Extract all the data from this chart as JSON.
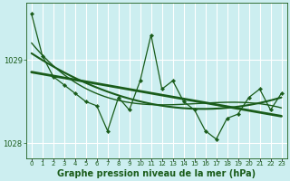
{
  "title": "Graphe pression niveau de la mer (hPa)",
  "background_color": "#cceef0",
  "grid_color": "#ffffff",
  "line_color": "#1a5c1a",
  "x_values": [
    0,
    1,
    2,
    3,
    4,
    5,
    6,
    7,
    8,
    9,
    10,
    11,
    12,
    13,
    14,
    15,
    16,
    17,
    18,
    19,
    20,
    21,
    22,
    23
  ],
  "y_values": [
    1029.55,
    1029.05,
    1028.8,
    1028.7,
    1028.6,
    1028.5,
    1028.45,
    1028.15,
    1028.55,
    1028.4,
    1028.75,
    1029.3,
    1028.65,
    1028.75,
    1028.5,
    1028.4,
    1028.15,
    1028.05,
    1028.3,
    1028.35,
    1028.55,
    1028.65,
    1028.4,
    1028.6
  ],
  "ylim_min": 1027.82,
  "ylim_max": 1029.68,
  "yticks": [
    1028,
    1029
  ],
  "smooth_lines": [
    {
      "deg": 1,
      "lw": 2.0
    },
    {
      "deg": 2,
      "lw": 1.5
    },
    {
      "deg": 3,
      "lw": 1.0
    }
  ],
  "title_fontsize": 7.0,
  "tick_fontsize": 6.0,
  "xtick_fontsize": 5.0
}
